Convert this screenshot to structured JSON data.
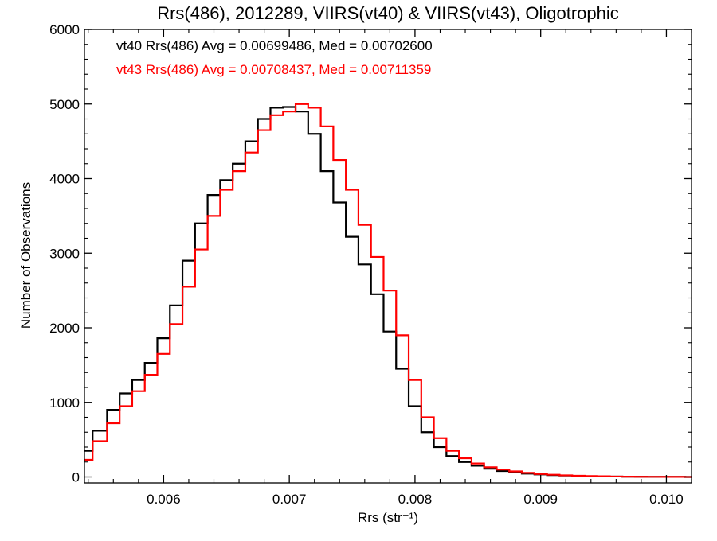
{
  "chart_data": {
    "type": "line",
    "title": "Rrs(486), 2012289, VIIRS(vt40) & VIIRS(vt43), Oligotrophic",
    "xlabel": "Rrs (str⁻¹)",
    "ylabel": "Number of Observations",
    "xlim": [
      0.00537,
      0.0102
    ],
    "ylim": [
      -80,
      6000
    ],
    "x_ticks": [
      0.006,
      0.007,
      0.008,
      0.009,
      0.01
    ],
    "x_tick_labels": [
      "0.006",
      "0.007",
      "0.008",
      "0.009",
      "0.010"
    ],
    "y_ticks": [
      0,
      1000,
      2000,
      3000,
      4000,
      5000,
      6000
    ],
    "y_tick_labels": [
      "0",
      "1000",
      "2000",
      "3000",
      "4000",
      "5000",
      "6000"
    ],
    "grid": false,
    "series": [
      {
        "name": "vt40",
        "color": "#000000",
        "label": "vt40 Rrs(486) Avg = 0.00699486, Med = 0.00702600",
        "x": [
          0.00537,
          0.0055,
          0.0056,
          0.0057,
          0.0058,
          0.0059,
          0.006,
          0.0061,
          0.0062,
          0.0063,
          0.0064,
          0.0065,
          0.0066,
          0.0067,
          0.0068,
          0.0069,
          0.007,
          0.0071,
          0.0072,
          0.0073,
          0.0074,
          0.0075,
          0.0076,
          0.0077,
          0.0078,
          0.0079,
          0.008,
          0.0081,
          0.0082,
          0.0083,
          0.0084,
          0.0085,
          0.0086,
          0.0087,
          0.0088,
          0.0089,
          0.009,
          0.0091,
          0.0092,
          0.0093,
          0.0094,
          0.0095,
          0.0096,
          0.0097,
          0.0098,
          0.0099,
          0.01,
          0.0101,
          0.0102
        ],
        "y": [
          350,
          620,
          900,
          1120,
          1300,
          1530,
          1860,
          2300,
          2900,
          3400,
          3780,
          3980,
          4200,
          4500,
          4800,
          4950,
          4960,
          4900,
          4600,
          4100,
          3680,
          3220,
          2850,
          2450,
          1950,
          1450,
          950,
          600,
          400,
          280,
          200,
          150,
          110,
          80,
          60,
          45,
          35,
          25,
          20,
          15,
          10,
          8,
          6,
          4,
          3,
          2,
          1,
          1,
          0
        ]
      },
      {
        "name": "vt43",
        "color": "#ff0000",
        "label": "vt43 Rrs(486) Avg = 0.00708437, Med = 0.00711359",
        "x": [
          0.00537,
          0.0055,
          0.0056,
          0.0057,
          0.0058,
          0.0059,
          0.006,
          0.0061,
          0.0062,
          0.0063,
          0.0064,
          0.0065,
          0.0066,
          0.0067,
          0.0068,
          0.0069,
          0.007,
          0.0071,
          0.0072,
          0.0073,
          0.0074,
          0.0075,
          0.0076,
          0.0077,
          0.0078,
          0.0079,
          0.008,
          0.0081,
          0.0082,
          0.0083,
          0.0084,
          0.0085,
          0.0086,
          0.0087,
          0.0088,
          0.0089,
          0.009,
          0.0091,
          0.0092,
          0.0093,
          0.0094,
          0.0095,
          0.0096,
          0.0097,
          0.0098,
          0.0099,
          0.01,
          0.0101,
          0.0102
        ],
        "y": [
          230,
          480,
          720,
          950,
          1150,
          1370,
          1650,
          2050,
          2550,
          3050,
          3500,
          3850,
          4100,
          4350,
          4650,
          4850,
          4900,
          5000,
          4950,
          4700,
          4250,
          3850,
          3380,
          2950,
          2500,
          1900,
          1300,
          800,
          520,
          350,
          250,
          180,
          130,
          100,
          75,
          55,
          40,
          30,
          22,
          16,
          12,
          9,
          6,
          4,
          3,
          2,
          1,
          1,
          0
        ]
      }
    ]
  }
}
